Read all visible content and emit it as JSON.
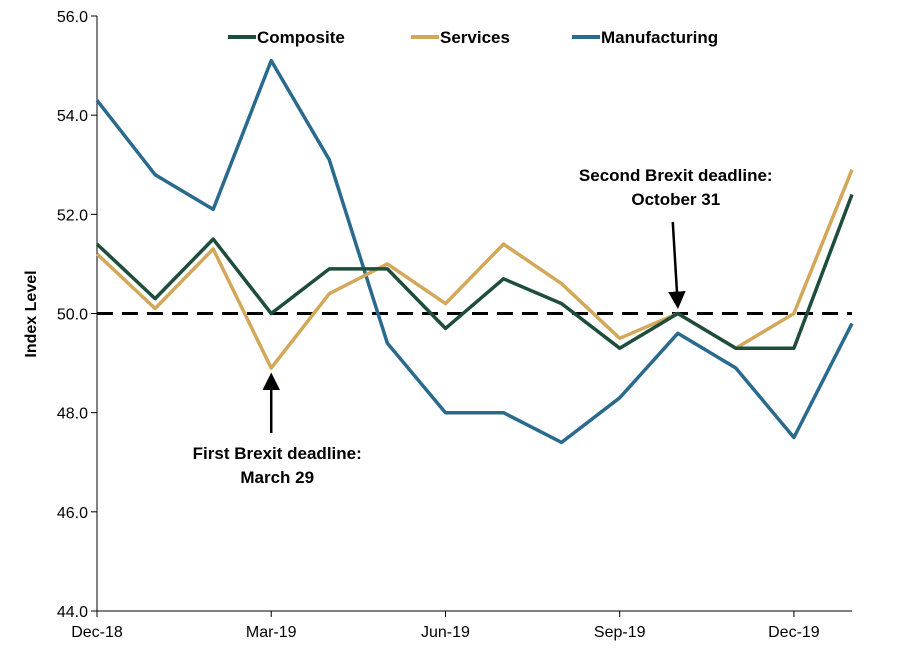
{
  "chart_data": {
    "type": "line",
    "title": "",
    "xlabel": "",
    "ylabel": "Index Level",
    "ylim": [
      44,
      56
    ],
    "yticks": [
      "44.0",
      "46.0",
      "48.0",
      "50.0",
      "52.0",
      "54.0",
      "56.0"
    ],
    "x": [
      "Dec-18",
      "Jan-19",
      "Feb-19",
      "Mar-19",
      "Apr-19",
      "May-19",
      "Jun-19",
      "Jul-19",
      "Aug-19",
      "Sep-19",
      "Oct-19",
      "Nov-19",
      "Dec-19",
      "Jan-20"
    ],
    "xtick_labels": [
      "Dec-18",
      "Mar-19",
      "Jun-19",
      "Sep-19",
      "Dec-19"
    ],
    "grid": false,
    "legend_position": "top-center",
    "reference_line": {
      "y": 50.0,
      "style": "dashed",
      "color": "#000000"
    },
    "series": [
      {
        "name": "Composite",
        "color": "#1e4d3c",
        "values": [
          51.4,
          50.3,
          51.5,
          50.0,
          50.9,
          50.9,
          49.7,
          50.7,
          50.2,
          49.3,
          50.0,
          49.3,
          49.3,
          52.4
        ]
      },
      {
        "name": "Services",
        "color": "#d4a85a",
        "values": [
          51.2,
          50.1,
          51.3,
          48.9,
          50.4,
          51.0,
          50.2,
          51.4,
          50.6,
          49.5,
          50.0,
          49.3,
          50.0,
          52.9
        ]
      },
      {
        "name": "Manufacturing",
        "color": "#2a6a8e",
        "values": [
          54.3,
          52.8,
          52.1,
          55.1,
          53.1,
          49.4,
          48.0,
          48.0,
          47.4,
          48.3,
          49.6,
          48.9,
          47.5,
          49.8
        ]
      }
    ],
    "annotations": [
      {
        "lines": [
          "First Brexit deadline:",
          "March 29"
        ],
        "x": "Mar-19",
        "y": 48.9,
        "direction": "up"
      },
      {
        "lines": [
          "Second Brexit deadline:",
          "October 31"
        ],
        "x": "Oct-19",
        "y": 50.0,
        "direction": "down"
      }
    ]
  }
}
